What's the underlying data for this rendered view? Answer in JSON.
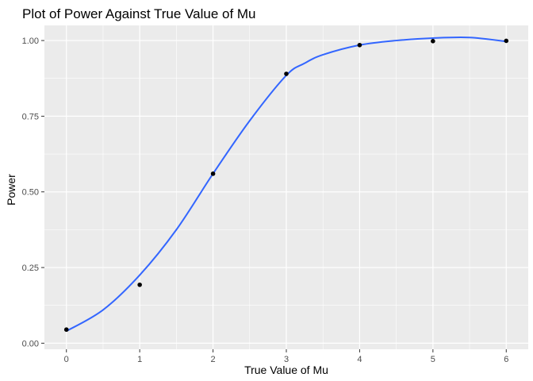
{
  "chart_data": {
    "type": "scatter",
    "title": "Plot of Power Against True Value of Mu",
    "xlabel": "True Value of Mu",
    "ylabel": "Power",
    "xlim": [
      -0.3,
      6.3
    ],
    "ylim": [
      -0.02,
      1.05
    ],
    "x_ticks": [
      0,
      1,
      2,
      3,
      4,
      5,
      6
    ],
    "x_tick_labels": [
      "0",
      "1",
      "2",
      "3",
      "4",
      "5",
      "6"
    ],
    "y_ticks": [
      0,
      0.25,
      0.5,
      0.75,
      1.0
    ],
    "y_tick_labels": [
      "0.00",
      "0.25",
      "0.50",
      "0.75",
      "1.00"
    ],
    "grid": true,
    "legend": "none",
    "background_color": "#ebebeb",
    "grid_color": "#ffffff",
    "points": {
      "x": [
        0,
        1,
        2,
        3,
        4,
        5,
        6
      ],
      "y": [
        0.045,
        0.193,
        0.56,
        0.89,
        0.985,
        0.998,
        0.999
      ],
      "color": "#000000"
    },
    "smooth_line": {
      "color": "#3366ff",
      "x": [
        0,
        0.5,
        1,
        1.5,
        2,
        2.5,
        3,
        3.25,
        3.5,
        4,
        4.5,
        5,
        5.5,
        6
      ],
      "y": [
        0.04,
        0.11,
        0.225,
        0.375,
        0.56,
        0.735,
        0.885,
        0.925,
        0.953,
        0.985,
        1.0,
        1.008,
        1.01,
        0.997
      ]
    }
  }
}
